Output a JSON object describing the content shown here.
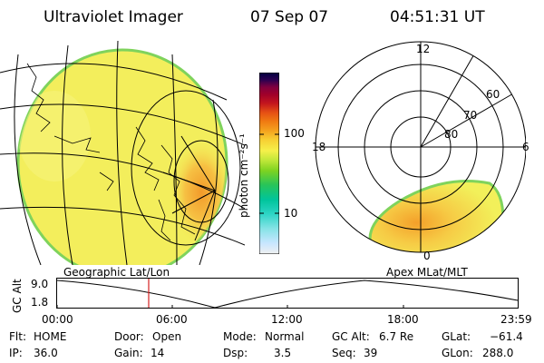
{
  "header": {
    "instrument": "Ultraviolet Imager",
    "date": "07 Sep 07",
    "time": "04:51:31 UT"
  },
  "colorbar": {
    "label": "photon cm⁻²s⁻¹",
    "ticks": [
      "100",
      "10"
    ],
    "colors": [
      "#f0f0f0",
      "#c8e6ff",
      "#86e3e6",
      "#2ed5c6",
      "#00c49b",
      "#27c45a",
      "#7ed321",
      "#c4e83a",
      "#f6f04a",
      "#f7cf33",
      "#f4a21e",
      "#f07b12",
      "#e55014",
      "#c4161e",
      "#a0002a",
      "#80003f",
      "#5a0055",
      "#2a0050",
      "#000040"
    ]
  },
  "panels": {
    "left_label": "Geographic Lat/Lon",
    "right_label": "Apex MLat/MLT",
    "polar_mlt_labels": [
      "12",
      "18",
      "6",
      "0"
    ],
    "polar_lat_labels": [
      "60",
      "70",
      "80"
    ]
  },
  "timeline": {
    "ylabel": "GC Alt",
    "yticks": [
      "9.0",
      "1.8"
    ],
    "xticks": [
      "00:00",
      "06:00",
      "12:00",
      "18:00",
      "23:59"
    ],
    "marker_time": "04:51"
  },
  "info": {
    "flt_label": "Flt:",
    "flt_value": "HOME",
    "ip_label": "IP:",
    "ip_value": "36.0",
    "door_label": "Door:",
    "door_value": "Open",
    "gain_label": "Gain:",
    "gain_value": "14",
    "mode_label": "Mode:",
    "mode_value": "Normal",
    "dsp_label": "Dsp:",
    "dsp_value": "3.5",
    "gcalt_label": "GC Alt:",
    "gcalt_value": "6.7 Re",
    "seq_label": "Seq:",
    "seq_value": "39",
    "glat_label": "GLat:",
    "glat_value": "−61.4",
    "glon_label": "GLon:",
    "glon_value": "288.0"
  },
  "colors": {
    "aurora_base": "#f2f05a",
    "aurora_bright": "#f7b23a",
    "limb": "#7fd35c",
    "marker": "#d42020"
  }
}
